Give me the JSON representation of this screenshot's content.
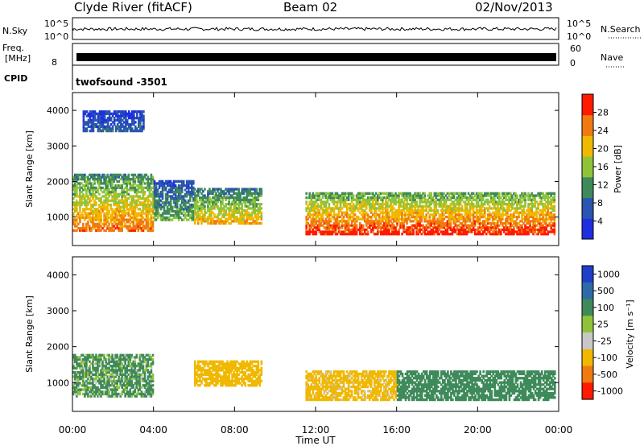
{
  "header": {
    "station": "Clyde River (fitACF)",
    "beam": "Beam 02",
    "date": "02/Nov/2013"
  },
  "summary_panels": {
    "nsky_label": "N.Sky",
    "nsky_ticks": [
      "10^5",
      "10^0"
    ],
    "nsearch_label": "N.Search",
    "nsearch_ticks": [
      "10^5",
      "10^0"
    ],
    "freq_label_1": "Freq.",
    "freq_label_2": "[MHz]",
    "freq_ticks": [
      "8"
    ],
    "nave_label": "Nave",
    "nave_ticks": [
      "60",
      "0"
    ],
    "cpid_label": "CPID",
    "cpid_value": "twofsound -3501"
  },
  "chart_data": [
    {
      "type": "heatmap",
      "name": "power",
      "ylabel": "Slant Range [km]",
      "yticks": [
        "1000",
        "2000",
        "3000",
        "4000"
      ],
      "ylim": [
        200,
        4500
      ],
      "xlim": [
        0,
        24
      ],
      "colorbar_label": "Power [dB]",
      "colorbar_ticks": [
        "4",
        "8",
        "12",
        "16",
        "20",
        "24",
        "28"
      ],
      "colorbar_range": [
        0,
        32
      ],
      "colors": [
        "#1f2fe0",
        "#2a55b0",
        "#3f8a5a",
        "#8fc43a",
        "#f0b800",
        "#f07a10",
        "#ff1a00"
      ],
      "regions": [
        {
          "t": [
            0.0,
            4.0
          ],
          "r": [
            600,
            2200
          ],
          "peak_db": 26
        },
        {
          "t": [
            4.0,
            6.0
          ],
          "r": [
            900,
            2000
          ],
          "peak_db": 14
        },
        {
          "t": [
            6.0,
            9.3
          ],
          "r": [
            800,
            1800
          ],
          "peak_db": 22
        },
        {
          "t": [
            11.5,
            23.8
          ],
          "r": [
            500,
            1700
          ],
          "peak_db": 30
        },
        {
          "t": [
            0.5,
            3.5
          ],
          "r": [
            3400,
            4000
          ],
          "peak_db": 8
        }
      ]
    },
    {
      "type": "heatmap",
      "name": "velocity",
      "xlabel": "Time UT",
      "xticks": [
        "00:00",
        "04:00",
        "08:00",
        "12:00",
        "16:00",
        "20:00",
        "00:00"
      ],
      "ylabel": "Slant Range [km]",
      "yticks": [
        "1000",
        "2000",
        "3000",
        "4000"
      ],
      "ylim": [
        200,
        4500
      ],
      "xlim": [
        0,
        24
      ],
      "colorbar_label": "Velocity [m s⁻¹]",
      "colorbar_ticks": [
        "1000",
        "500",
        "100",
        "25",
        "-25",
        "-100",
        "-500",
        "-1000"
      ],
      "colors": [
        "#1f3fc8",
        "#2f6aa8",
        "#3f8a5a",
        "#8fc43a",
        "#c8c8c8",
        "#f0b800",
        "#f07a10",
        "#ff1a00"
      ],
      "regions": [
        {
          "t": [
            0.0,
            4.0
          ],
          "r": [
            600,
            1800
          ],
          "velocity": 200
        },
        {
          "t": [
            6.0,
            9.3
          ],
          "r": [
            900,
            1600
          ],
          "velocity": -400
        },
        {
          "t": [
            11.5,
            16.0
          ],
          "r": [
            500,
            1300
          ],
          "velocity": -300
        },
        {
          "t": [
            16.0,
            23.8
          ],
          "r": [
            500,
            1300
          ],
          "velocity": 400
        }
      ]
    }
  ]
}
